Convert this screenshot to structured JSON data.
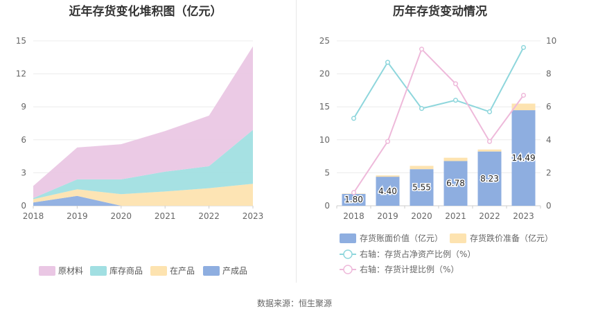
{
  "left_title": "近年存货变化堆积图（亿元）",
  "right_title": "历年存货变动情况",
  "source": "数据来源：恒生聚源",
  "colors": {
    "raw_material": "#eac7e4",
    "goods": "#a1dfe2",
    "wip": "#fde3b0",
    "finished": "#8eaee0",
    "book_value": "#8eaee0",
    "provision": "#fde3b0",
    "ratio_net_assets": "#8ed6dc",
    "provision_ratio": "#eeb9da"
  },
  "chart_data": [
    {
      "type": "area",
      "stacked": true,
      "x": [
        "2018",
        "2019",
        "2020",
        "2021",
        "2022",
        "2023"
      ],
      "ylim": [
        0,
        15
      ],
      "yticks": [
        "0",
        "3",
        "6",
        "9",
        "12",
        "15"
      ],
      "grid": true,
      "legend_position": "bottom",
      "series": [
        {
          "name": "产成品",
          "key": "finished",
          "values": [
            0.3,
            0.9,
            0.0,
            0.0,
            0.0,
            0.0
          ]
        },
        {
          "name": "在产品",
          "key": "wip",
          "values": [
            0.3,
            0.6,
            1.05,
            1.3,
            1.6,
            2.0
          ]
        },
        {
          "name": "库存商品",
          "key": "goods",
          "values": [
            0.1,
            0.9,
            1.35,
            1.8,
            2.0,
            4.9
          ]
        },
        {
          "name": "原材料",
          "key": "raw_material",
          "values": [
            1.1,
            2.9,
            3.2,
            3.7,
            4.6,
            7.6
          ]
        }
      ],
      "legend_order": [
        "原材料",
        "库存商品",
        "在产品",
        "产成品"
      ]
    },
    {
      "type": "bar",
      "stacked": true,
      "categories": [
        "2018",
        "2019",
        "2020",
        "2021",
        "2022",
        "2023"
      ],
      "ylim": [
        0,
        25
      ],
      "yticks": [
        "0",
        "5",
        "10",
        "15",
        "20",
        "25"
      ],
      "y2lim": [
        0,
        10
      ],
      "y2ticks": [
        "0",
        "2",
        "4",
        "6",
        "8",
        "10"
      ],
      "grid": true,
      "legend_position": "bottom",
      "series": [
        {
          "name": "存货账面价值（亿元）",
          "key": "book_value",
          "values": [
            1.8,
            4.4,
            5.55,
            6.78,
            8.23,
            14.49
          ],
          "labels": [
            "1.80",
            "4.40",
            "5.55",
            "6.78",
            "8.23",
            "14.49"
          ]
        },
        {
          "name": "存货跌价准备（亿元）",
          "key": "provision",
          "values": [
            0.05,
            0.2,
            0.5,
            0.5,
            0.3,
            1.0
          ]
        }
      ],
      "line_series": [
        {
          "name": "右轴：存货占净资产比例（%）",
          "key": "ratio_net_assets",
          "axis": "right",
          "values": [
            5.3,
            8.7,
            5.9,
            6.4,
            5.7,
            9.6
          ]
        },
        {
          "name": "右轴：存货计提比例（%）",
          "key": "provision_ratio",
          "axis": "right",
          "values": [
            0.8,
            3.9,
            9.5,
            7.4,
            3.9,
            6.7
          ]
        }
      ]
    }
  ]
}
